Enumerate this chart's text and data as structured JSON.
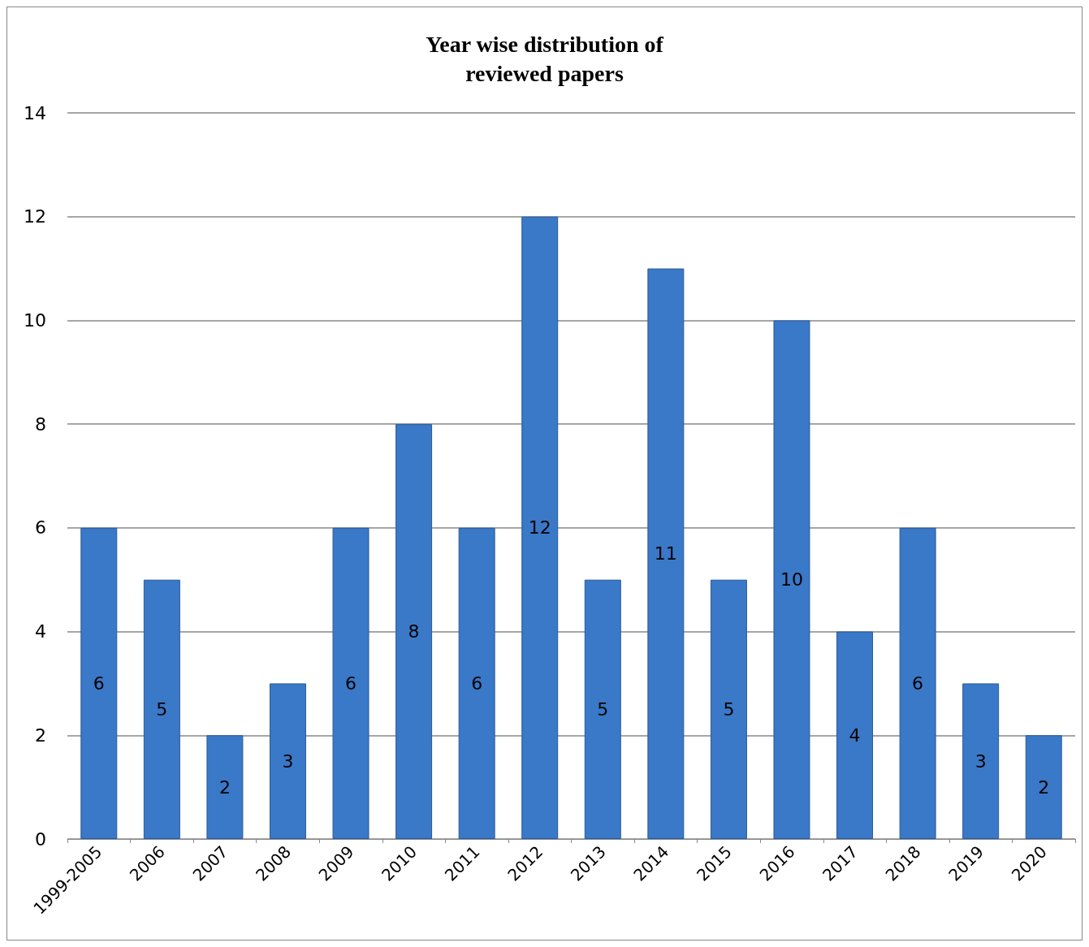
{
  "chart_data": {
    "type": "bar",
    "title": "Year wise distribution of\nreviewed papers",
    "categories": [
      "1999-2005",
      "2006",
      "2007",
      "2008",
      "2009",
      "2010",
      "2011",
      "2012",
      "2013",
      "2014",
      "2015",
      "2016",
      "2017",
      "2018",
      "2019",
      "2020"
    ],
    "values": [
      6,
      5,
      2,
      3,
      6,
      8,
      6,
      12,
      5,
      11,
      5,
      10,
      4,
      6,
      3,
      2
    ],
    "color": "#3a78c8",
    "ylim": [
      0,
      14
    ],
    "yticks": [
      0,
      2,
      4,
      6,
      8,
      10,
      12,
      14
    ],
    "grid": true,
    "data_labels": true
  }
}
